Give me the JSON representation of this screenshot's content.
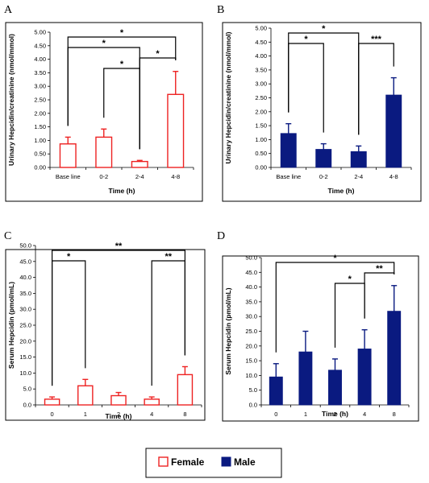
{
  "colors": {
    "female": "#ee2222",
    "male": "#0a1a80",
    "frame": "#000000"
  },
  "legend": {
    "female_label": "Female",
    "male_label": "Male"
  },
  "chart_data": [
    {
      "id": "A",
      "panel_label": "A",
      "type": "bar",
      "style": "outline",
      "color_key": "female",
      "categories": [
        "Base line",
        "0-2",
        "2-4",
        "4-8"
      ],
      "values": [
        0.87,
        1.12,
        0.22,
        2.7
      ],
      "errors": [
        0.25,
        0.3,
        0.04,
        0.85
      ],
      "ylim": [
        0,
        5
      ],
      "ytick_step": 0.5,
      "ytick_decimals": 2,
      "ylabel": "Urinary Hepcidin/creatinine (nmol/mmol)",
      "xlabel": "Time (h)",
      "brackets": [
        {
          "from": 0,
          "to": 3,
          "label": "*"
        },
        {
          "from": 0,
          "to": 2,
          "label": "*"
        },
        {
          "from": 1,
          "to": 2,
          "label": "*"
        },
        {
          "from": 2,
          "to": 3,
          "label": "*"
        }
      ]
    },
    {
      "id": "B",
      "panel_label": "B",
      "type": "bar",
      "style": "filled",
      "color_key": "male",
      "categories": [
        "Base line",
        "0-2",
        "2-4",
        "4-8"
      ],
      "values": [
        1.22,
        0.65,
        0.57,
        2.6
      ],
      "errors": [
        0.35,
        0.2,
        0.2,
        0.62
      ],
      "ylim": [
        0,
        5
      ],
      "ytick_step": 0.5,
      "ytick_decimals": 2,
      "ylabel": "Urinary Hepcidin/creatinine (nmol/mmol)",
      "xlabel": "Time (h)",
      "brackets": [
        {
          "from": 0,
          "to": 2,
          "label": "*"
        },
        {
          "from": 0,
          "to": 1,
          "label": "*"
        },
        {
          "from": 2,
          "to": 3,
          "label": "***"
        }
      ]
    },
    {
      "id": "C",
      "panel_label": "C",
      "type": "bar",
      "style": "outline",
      "color_key": "female",
      "categories": [
        "0",
        "1",
        "2",
        "4",
        "8"
      ],
      "values": [
        1.8,
        6.0,
        2.9,
        1.8,
        9.5
      ],
      "errors": [
        0.7,
        2.0,
        1.0,
        0.7,
        2.5
      ],
      "ylim": [
        0,
        50
      ],
      "ytick_step": 5,
      "ytick_decimals": 1,
      "ylabel": "Serum Hepcidin (pmol/mL)",
      "xlabel": "Time (h)",
      "brackets": [
        {
          "from": 0,
          "to": 4,
          "label": "**"
        },
        {
          "from": 0,
          "to": 1,
          "label": "*"
        },
        {
          "from": 3,
          "to": 4,
          "label": "**"
        }
      ]
    },
    {
      "id": "D",
      "panel_label": "D",
      "type": "bar",
      "style": "filled",
      "color_key": "male",
      "categories": [
        "0",
        "1",
        "2",
        "4",
        "8"
      ],
      "values": [
        9.5,
        18.0,
        11.8,
        19.0,
        31.8
      ],
      "errors": [
        4.5,
        7.0,
        3.8,
        6.5,
        8.7
      ],
      "ylim": [
        0,
        50
      ],
      "ytick_step": 5,
      "ytick_decimals": 1,
      "ylabel": "Serum Hepcidin (pmol/mL)",
      "xlabel": "Time (h)",
      "brackets": [
        {
          "from": 0,
          "to": 4,
          "label": "*"
        },
        {
          "from": 2,
          "to": 3,
          "label": "*"
        },
        {
          "from": 3,
          "to": 4,
          "label": "**"
        }
      ]
    }
  ]
}
